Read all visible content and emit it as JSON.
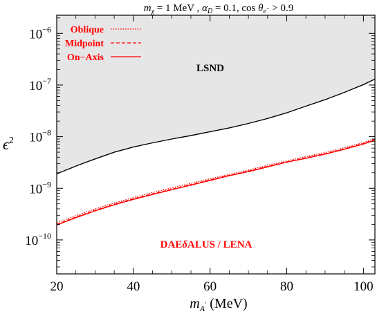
{
  "chart_data": {
    "type": "line",
    "title": {
      "m_symbol": "m",
      "m_sub": "χ",
      "m_value": " = 1 MeV ,  ",
      "alpha_symbol": "α",
      "alpha_sub": "D",
      "alpha_value": " = 0.1,   cos ",
      "theta_symbol": "θ",
      "theta_sub": "e",
      "theta_sub_sup": "−",
      "theta_value": " > 0.9"
    },
    "xlabel": {
      "symbol": "m",
      "sub": "A",
      "prime": "′",
      "unit": " (MeV)"
    },
    "ylabel": {
      "base": "ϵ",
      "exponent": "2"
    },
    "x_scale": "linear",
    "y_scale": "log",
    "xlim": [
      20,
      103
    ],
    "ylim": [
      2.2e-11,
      2.25e-06
    ],
    "x_ticks": [
      {
        "value": 20,
        "label": "20"
      },
      {
        "value": 40,
        "label": "40"
      },
      {
        "value": 60,
        "label": "60"
      },
      {
        "value": 80,
        "label": "80"
      },
      {
        "value": 100,
        "label": "100"
      }
    ],
    "y_ticks": [
      {
        "value": 1e-10,
        "base": "10",
        "exp": "−10"
      },
      {
        "value": 1e-09,
        "base": "10",
        "exp": "−9"
      },
      {
        "value": 1e-08,
        "base": "10",
        "exp": "−8"
      },
      {
        "value": 1e-07,
        "base": "10",
        "exp": "−7"
      },
      {
        "value": 1e-06,
        "base": "10",
        "exp": "−6"
      }
    ],
    "legend": {
      "placement": "top-left",
      "entries": [
        {
          "label": "Oblique",
          "style": "dotted"
        },
        {
          "label": "Midpoint",
          "style": "dashed"
        },
        {
          "label": "On−Axis",
          "style": "solid"
        }
      ]
    },
    "annotations": {
      "lsnd": "LSND",
      "exp_prefix": "DAE",
      "exp_delta": "δ",
      "exp_suffix": "ALUS / LENA"
    },
    "series": [
      {
        "name": "LSND",
        "color": "#000000",
        "style": "solid",
        "fill": "#e6e6e6",
        "x": [
          20,
          25,
          30,
          35,
          40,
          45,
          50,
          55,
          60,
          65,
          70,
          75,
          80,
          85,
          90,
          95,
          100,
          103
        ],
        "y": [
          1.9e-09,
          2.7e-09,
          3.7e-09,
          5e-09,
          6.3e-09,
          7.6e-09,
          9e-09,
          1.05e-08,
          1.25e-08,
          1.48e-08,
          1.8e-08,
          2.25e-08,
          2.9e-08,
          3.9e-08,
          5.2e-08,
          7.2e-08,
          1.02e-07,
          1.3e-07
        ]
      },
      {
        "name": "On−Axis",
        "color": "#ff0000",
        "style": "solid",
        "x": [
          20,
          25,
          30,
          35,
          40,
          45,
          50,
          55,
          60,
          65,
          70,
          75,
          80,
          85,
          90,
          95,
          100,
          103
        ],
        "y": [
          1.95e-10,
          2.7e-10,
          3.65e-10,
          4.8e-10,
          6.1e-10,
          7.6e-10,
          9.4e-10,
          1.15e-09,
          1.42e-09,
          1.75e-09,
          2.1e-09,
          2.6e-09,
          3.2e-09,
          3.8e-09,
          4.6e-09,
          5.7e-09,
          7.2e-09,
          8.6e-09
        ]
      },
      {
        "name": "Midpoint",
        "color": "#ff0000",
        "style": "dashed",
        "x": [
          20,
          25,
          30,
          35,
          40,
          45,
          50,
          55,
          60,
          65,
          70,
          75,
          80,
          85,
          90,
          95,
          100,
          103
        ],
        "y": [
          2e-10,
          2.78e-10,
          3.75e-10,
          4.9e-10,
          6.25e-10,
          7.8e-10,
          9.6e-10,
          1.18e-09,
          1.45e-09,
          1.78e-09,
          2.15e-09,
          2.65e-09,
          3.25e-09,
          3.9e-09,
          4.7e-09,
          5.8e-09,
          7.35e-09,
          8.8e-09
        ]
      },
      {
        "name": "Oblique",
        "color": "#ff0000",
        "style": "dotted",
        "x": [
          20,
          25,
          30,
          35,
          40,
          45,
          50,
          55,
          60,
          65,
          70,
          75,
          80,
          85,
          90,
          95,
          100,
          103
        ],
        "y": [
          2.15e-10,
          2.95e-10,
          4e-10,
          5.2e-10,
          6.6e-10,
          8.3e-10,
          1.02e-09,
          1.25e-09,
          1.53e-09,
          1.87e-09,
          2.25e-09,
          2.8e-09,
          3.4e-09,
          4.1e-09,
          4.95e-09,
          6.1e-09,
          7.7e-09,
          9.2e-09
        ]
      }
    ],
    "colors": {
      "shade": "#e6e6e6",
      "red": "#ff0000",
      "black": "#000000"
    }
  }
}
